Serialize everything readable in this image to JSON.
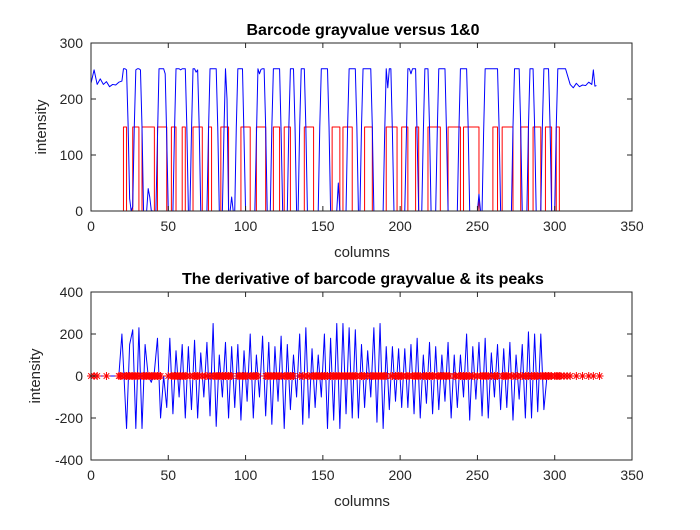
{
  "chart_data": [
    {
      "type": "line",
      "title": "Barcode grayvalue versus 1&0",
      "xlabel": "columns",
      "ylabel": "intensity",
      "xlim": [
        0,
        350
      ],
      "ylim": [
        0,
        300
      ],
      "xticks": [
        "0",
        "50",
        "100",
        "150",
        "200",
        "250",
        "300",
        "350"
      ],
      "yticks": [
        "0",
        "100",
        "200",
        "300"
      ],
      "series_colors": {
        "grayvalue": "#0000ff",
        "binary": "#ff0000"
      },
      "grayvalue_x": [
        0,
        2,
        4,
        6,
        8,
        10,
        12,
        14,
        16,
        18,
        20,
        21,
        22,
        23,
        24,
        25,
        26,
        27,
        28,
        29,
        30,
        31,
        32,
        33,
        34,
        35,
        36,
        37,
        38,
        39,
        40,
        41,
        42,
        43,
        44,
        45,
        46,
        47,
        48,
        49,
        50,
        51,
        52,
        53,
        54,
        55,
        56,
        57,
        58,
        59,
        60,
        61,
        62,
        63,
        64,
        65,
        66,
        67,
        68,
        69,
        70,
        71,
        72,
        73,
        74,
        75,
        76,
        77,
        78,
        79,
        80,
        81,
        82,
        83,
        84,
        85,
        86,
        87,
        88,
        89,
        90,
        91,
        92,
        93,
        94,
        95,
        96,
        97,
        98,
        99,
        100,
        101,
        102,
        103,
        104,
        105,
        106,
        107,
        108,
        109,
        110,
        111,
        112,
        113,
        114,
        115,
        116,
        117,
        118,
        119,
        120,
        121,
        122,
        123,
        124,
        125,
        126,
        127,
        128,
        129,
        130,
        131,
        132,
        133,
        134,
        135,
        136,
        137,
        138,
        139,
        140,
        141,
        142,
        143,
        144,
        145,
        146,
        147,
        148,
        149,
        150,
        151,
        152,
        153,
        154,
        155,
        156,
        157,
        158,
        159,
        160,
        161,
        162,
        163,
        164,
        165,
        166,
        167,
        168,
        169,
        170,
        171,
        172,
        173,
        174,
        175,
        176,
        177,
        178,
        179,
        180,
        181,
        182,
        183,
        184,
        185,
        186,
        187,
        188,
        189,
        190,
        191,
        192,
        193,
        194,
        195,
        196,
        197,
        198,
        199,
        200,
        201,
        202,
        203,
        204,
        205,
        206,
        207,
        208,
        209,
        210,
        211,
        212,
        213,
        214,
        215,
        216,
        217,
        218,
        219,
        220,
        221,
        222,
        223,
        224,
        225,
        226,
        227,
        228,
        229,
        230,
        231,
        232,
        233,
        234,
        235,
        236,
        237,
        238,
        239,
        240,
        241,
        242,
        243,
        244,
        245,
        246,
        247,
        248,
        249,
        250,
        251,
        252,
        253,
        254,
        255,
        256,
        257,
        258,
        259,
        260,
        261,
        262,
        263,
        264,
        265,
        266,
        267,
        268,
        269,
        270,
        271,
        272,
        273,
        274,
        275,
        276,
        277,
        278,
        279,
        280,
        281,
        282,
        283,
        284,
        285,
        286,
        287,
        288,
        289,
        290,
        291,
        292,
        293,
        294,
        295,
        296,
        297,
        298,
        299,
        300,
        301,
        302,
        303,
        304,
        305,
        306,
        307,
        310,
        312,
        314,
        316,
        318,
        320,
        322,
        324,
        325,
        326,
        327,
        328
      ],
      "grayvalue_y": [
        228,
        252,
        226,
        236,
        226,
        231,
        222,
        226,
        225,
        230,
        232,
        254,
        254,
        252,
        154,
        22,
        0,
        8,
        150,
        252,
        254,
        254,
        252,
        150,
        0,
        0,
        0,
        40,
        25,
        1,
        0,
        0,
        0,
        130,
        254,
        254,
        254,
        254,
        245,
        130,
        0,
        0,
        0,
        0,
        140,
        254,
        254,
        254,
        252,
        254,
        254,
        254,
        150,
        0,
        0,
        140,
        254,
        254,
        248,
        252,
        150,
        0,
        0,
        0,
        0,
        0,
        140,
        254,
        254,
        254,
        254,
        254,
        150,
        0,
        0,
        0,
        140,
        254,
        200,
        0,
        0,
        25,
        0,
        0,
        150,
        254,
        254,
        254,
        254,
        130,
        0,
        0,
        0,
        0,
        0,
        0,
        0,
        130,
        254,
        245,
        253,
        254,
        254,
        150,
        0,
        0,
        0,
        150,
        254,
        254,
        254,
        254,
        254,
        140,
        0,
        0,
        0,
        0,
        150,
        254,
        254,
        254,
        150,
        0,
        0,
        150,
        254,
        254,
        254,
        150,
        0,
        0,
        0,
        0,
        0,
        0,
        0,
        0,
        150,
        254,
        254,
        254,
        254,
        254,
        150,
        0,
        0,
        0,
        0,
        0,
        50,
        0,
        0,
        0,
        0,
        0,
        150,
        254,
        254,
        254,
        254,
        254,
        150,
        0,
        0,
        150,
        254,
        254,
        254,
        254,
        254,
        254,
        150,
        0,
        0,
        0,
        0,
        0,
        0,
        0,
        140,
        254,
        220,
        254,
        254,
        140,
        0,
        0,
        0,
        0,
        0,
        0,
        0,
        0,
        130,
        254,
        254,
        245,
        254,
        254,
        254,
        130,
        0,
        0,
        0,
        140,
        254,
        254,
        254,
        150,
        0,
        0,
        0,
        0,
        140,
        254,
        254,
        254,
        254,
        254,
        140,
        0,
        0,
        0,
        0,
        0,
        0,
        0,
        140,
        254,
        254,
        254,
        254,
        254,
        150,
        0,
        0,
        0,
        0,
        0,
        0,
        30,
        0,
        0,
        140,
        254,
        254,
        254,
        254,
        254,
        254,
        254,
        254,
        254,
        150,
        0,
        0,
        0,
        0,
        0,
        0,
        0,
        0,
        150,
        254,
        254,
        254,
        254,
        150,
        0,
        0,
        0,
        0,
        150,
        254,
        254,
        254,
        150,
        0,
        0,
        0,
        0,
        150,
        254,
        254,
        254,
        254,
        150,
        0,
        0,
        0,
        150,
        254,
        254,
        254,
        254,
        254,
        254,
        226,
        220,
        228,
        222,
        225,
        224,
        230,
        226,
        252,
        223,
        224
      ],
      "binary_x": [
        0,
        21,
        21,
        23,
        23,
        27,
        27,
        31,
        31,
        33,
        33,
        41,
        41,
        43,
        43,
        49,
        49,
        52,
        52,
        55,
        55,
        59,
        59,
        61,
        61,
        66,
        66,
        72,
        72,
        76,
        76,
        78,
        78,
        84,
        84,
        89,
        89,
        97,
        97,
        103,
        103,
        107,
        107,
        113,
        113,
        118,
        118,
        122,
        122,
        125,
        125,
        129,
        129,
        138,
        138,
        144,
        144,
        156,
        156,
        161,
        161,
        163,
        163,
        169,
        169,
        177,
        177,
        182,
        182,
        191,
        191,
        198,
        198,
        201,
        201,
        205,
        205,
        210,
        210,
        212,
        212,
        218,
        218,
        226,
        226,
        231,
        231,
        239,
        239,
        241,
        241,
        251,
        251,
        260,
        260,
        263,
        263,
        266,
        266,
        273,
        273,
        278,
        278,
        283,
        283,
        286,
        286,
        291,
        291,
        294,
        294,
        298,
        298,
        301,
        301,
        303,
        303,
        330
      ],
      "binary_y": [
        0,
        0,
        150,
        150,
        0,
        0,
        150,
        150,
        0,
        0,
        150,
        150,
        0,
        0,
        150,
        150,
        0,
        0,
        150,
        150,
        0,
        0,
        150,
        150,
        0,
        0,
        150,
        150,
        0,
        0,
        150,
        150,
        0,
        0,
        150,
        150,
        0,
        0,
        150,
        150,
        0,
        0,
        150,
        150,
        0,
        0,
        150,
        150,
        0,
        0,
        150,
        150,
        0,
        0,
        150,
        150,
        0,
        0,
        150,
        150,
        0,
        0,
        150,
        150,
        0,
        0,
        150,
        150,
        0,
        0,
        150,
        150,
        0,
        0,
        150,
        150,
        0,
        0,
        150,
        150,
        0,
        0,
        150,
        150,
        0,
        0,
        150,
        150,
        0,
        0,
        150,
        150,
        0,
        0,
        150,
        150,
        0,
        0,
        150,
        150,
        0,
        0,
        150,
        150,
        0,
        0,
        150,
        150,
        0,
        0,
        150,
        150,
        0,
        0,
        150,
        150,
        0,
        0
      ]
    },
    {
      "type": "line",
      "title": "The derivative of barcode grayvalue & its peaks",
      "xlabel": "columns",
      "ylabel": "intensity",
      "xlim": [
        0,
        350
      ],
      "ylim": [
        -400,
        400
      ],
      "xticks": [
        "0",
        "50",
        "100",
        "150",
        "200",
        "250",
        "300",
        "350"
      ],
      "yticks": [
        "-400",
        "-200",
        "0",
        "200",
        "400"
      ],
      "series_colors": {
        "derivative": "#0000ff",
        "peaks": "#ff0000"
      },
      "derivative_x": [
        0,
        18,
        20,
        23,
        25,
        27,
        29,
        31,
        33,
        35,
        37,
        39,
        41,
        43,
        45,
        47,
        49,
        51,
        53,
        55,
        57,
        59,
        61,
        63,
        65,
        67,
        69,
        71,
        73,
        75,
        77,
        79,
        81,
        83,
        85,
        87,
        89,
        91,
        93,
        95,
        97,
        99,
        101,
        103,
        105,
        107,
        109,
        111,
        113,
        115,
        117,
        119,
        121,
        123,
        125,
        127,
        129,
        131,
        133,
        135,
        137,
        139,
        141,
        143,
        145,
        147,
        149,
        151,
        153,
        155,
        157,
        159,
        161,
        163,
        165,
        167,
        169,
        171,
        173,
        175,
        177,
        179,
        181,
        183,
        185,
        187,
        189,
        191,
        193,
        195,
        197,
        199,
        201,
        203,
        205,
        207,
        209,
        211,
        213,
        215,
        217,
        219,
        221,
        223,
        225,
        227,
        229,
        231,
        233,
        235,
        237,
        239,
        241,
        243,
        245,
        247,
        249,
        251,
        253,
        255,
        257,
        259,
        261,
        263,
        265,
        267,
        269,
        271,
        273,
        275,
        277,
        279,
        281,
        283,
        285,
        287,
        289,
        291,
        293,
        295,
        297,
        299,
        301,
        303,
        305,
        307,
        330
      ],
      "derivative_y": [
        0,
        0,
        200,
        -250,
        150,
        220,
        -250,
        230,
        -250,
        150,
        0,
        -30,
        20,
        180,
        -200,
        0,
        -150,
        180,
        -180,
        120,
        -100,
        150,
        -200,
        140,
        -160,
        170,
        -200,
        110,
        -100,
        160,
        -190,
        250,
        -240,
        100,
        -100,
        160,
        -200,
        140,
        -150,
        150,
        -210,
        120,
        -120,
        200,
        -200,
        100,
        -100,
        190,
        -190,
        160,
        -230,
        140,
        -120,
        190,
        -250,
        150,
        -160,
        100,
        -100,
        200,
        -230,
        230,
        -200,
        130,
        -150,
        100,
        -100,
        200,
        -250,
        180,
        -210,
        250,
        -250,
        250,
        -180,
        230,
        -200,
        220,
        -200,
        150,
        -150,
        120,
        -100,
        230,
        -220,
        250,
        -250,
        140,
        -160,
        140,
        -120,
        130,
        -150,
        130,
        -150,
        150,
        -180,
        180,
        -200,
        100,
        -130,
        160,
        -180,
        140,
        -160,
        100,
        -120,
        160,
        -200,
        100,
        -150,
        100,
        -100,
        200,
        -210,
        140,
        -110,
        160,
        -190,
        180,
        -200,
        110,
        -100,
        150,
        -160,
        130,
        -150,
        160,
        -210,
        100,
        -110,
        150,
        -200,
        210,
        -200,
        200,
        -170,
        200,
        -160,
        0,
        0,
        0
      ],
      "peaks_x": [
        0,
        2,
        4,
        10,
        18,
        19,
        20,
        22,
        23,
        24,
        25,
        26,
        27,
        28,
        29,
        30,
        31,
        33,
        34,
        35,
        36,
        37,
        38,
        39,
        40,
        41,
        42,
        43,
        44,
        45,
        50,
        52,
        53,
        54,
        55,
        56,
        57,
        58,
        59,
        60,
        61,
        62,
        64,
        66,
        67,
        68,
        69,
        70,
        72,
        74,
        75,
        77,
        79,
        80,
        81,
        82,
        83,
        84,
        85,
        86,
        87,
        88,
        89,
        90,
        91,
        95,
        96,
        97,
        98,
        99,
        100,
        101,
        103,
        104,
        105,
        106,
        107,
        108,
        113,
        114,
        115,
        116,
        117,
        118,
        119,
        120,
        121,
        122,
        123,
        125,
        126,
        127,
        128,
        129,
        130,
        131,
        135,
        137,
        138,
        140,
        141,
        143,
        144,
        145,
        146,
        147,
        148,
        149,
        150,
        151,
        152,
        153,
        155,
        156,
        157,
        158,
        159,
        160,
        161,
        162,
        163,
        164,
        165,
        166,
        167,
        168,
        169,
        170,
        171,
        172,
        174,
        175,
        176,
        177,
        179,
        181,
        182,
        183,
        184,
        185,
        186,
        187,
        188,
        189,
        190,
        191,
        194,
        195,
        197,
        198,
        199,
        200,
        201,
        202,
        204,
        205,
        206,
        208,
        209,
        210,
        211,
        212,
        213,
        215,
        216,
        217,
        218,
        219,
        220,
        221,
        222,
        224,
        225,
        226,
        227,
        228,
        229,
        230,
        231,
        232,
        235,
        236,
        238,
        239,
        240,
        241,
        242,
        243,
        244,
        245,
        247,
        248,
        250,
        252,
        253,
        254,
        255,
        256,
        257,
        259,
        261,
        262,
        263,
        266,
        267,
        268,
        269,
        270,
        272,
        273,
        275,
        276,
        278,
        279,
        281,
        282,
        283,
        285,
        286,
        287,
        288,
        289,
        291,
        292,
        293,
        294,
        295,
        296,
        297,
        298,
        300,
        301,
        302,
        303,
        304,
        306,
        308,
        310,
        314,
        318,
        322,
        325,
        329
      ]
    }
  ]
}
